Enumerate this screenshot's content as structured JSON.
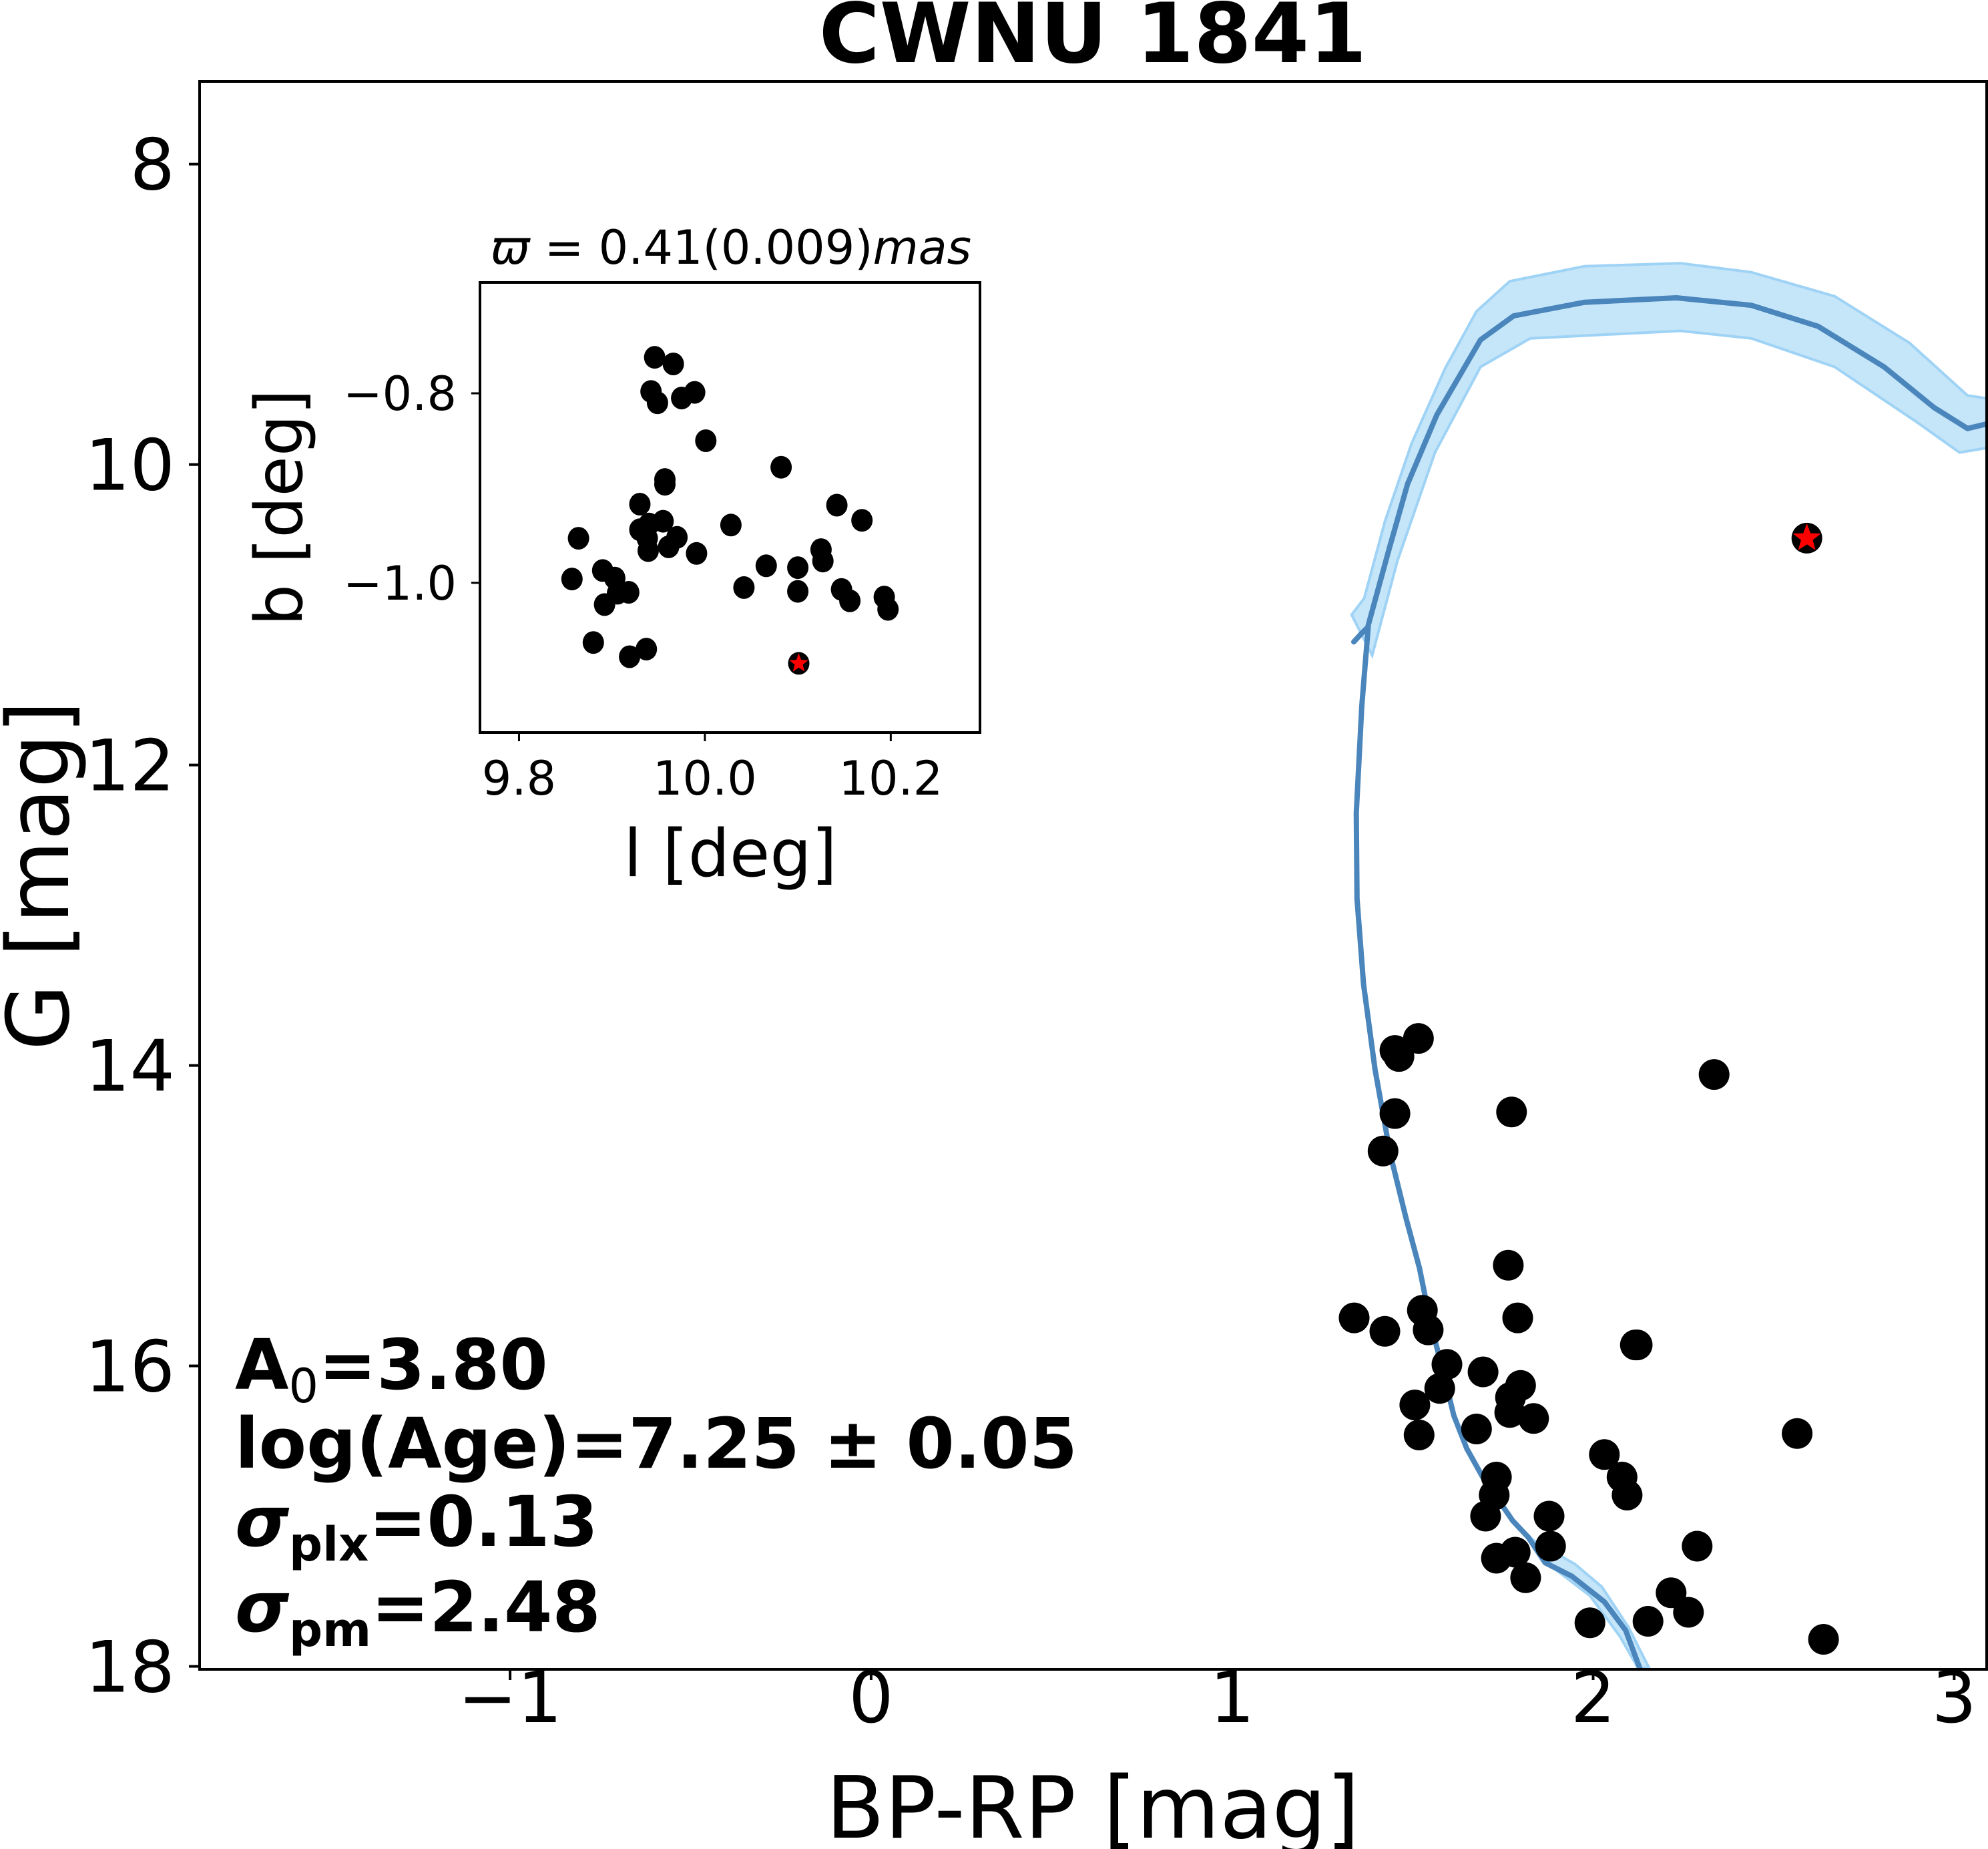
{
  "chart_data": [
    {
      "type": "scatter",
      "name": "color-magnitude-diagram",
      "title": "CWNU 1841",
      "xlabel": "BP-RP [mag]",
      "ylabel": "G [mag]",
      "xlim": [
        -1.86,
        3.09
      ],
      "ylim": [
        18.02,
        7.45
      ],
      "y_inverted": true,
      "grid": false,
      "xticks": [
        -1,
        0,
        1,
        2,
        3
      ],
      "xtick_labels": [
        "−1",
        "0",
        "1",
        "2",
        "3"
      ],
      "yticks": [
        8,
        10,
        12,
        14,
        16,
        18
      ],
      "ytick_labels": [
        "8",
        "10",
        "12",
        "14",
        "16",
        "18"
      ],
      "members": {
        "color": "#000000",
        "x": [
          1.516,
          1.451,
          1.462,
          1.451,
          1.418,
          1.774,
          2.335,
          1.765,
          1.338,
          1.423,
          1.527,
          1.543,
          1.791,
          2.117,
          2.122,
          1.595,
          1.695,
          1.575,
          1.799,
          1.771,
          1.769,
          1.835,
          1.506,
          1.518,
          1.677,
          2.031,
          2.08,
          2.094,
          1.732,
          1.726,
          1.702,
          1.878,
          1.882,
          1.784,
          1.732,
          1.813,
          2.288,
          2.216,
          2.264,
          1.991,
          2.152,
          2.638,
          2.565
        ],
        "y": [
          13.82,
          13.9,
          13.94,
          14.32,
          14.57,
          14.31,
          14.06,
          15.33,
          15.68,
          15.77,
          15.63,
          15.76,
          15.68,
          15.86,
          15.86,
          15.99,
          16.04,
          16.15,
          16.13,
          16.21,
          16.31,
          16.35,
          16.26,
          16.46,
          16.42,
          16.59,
          16.74,
          16.86,
          16.74,
          16.86,
          17.0,
          17.0,
          17.2,
          17.24,
          17.28,
          17.41,
          17.2,
          17.51,
          17.64,
          17.71,
          17.7,
          17.82,
          16.45
        ]
      },
      "highlight_star": {
        "x": 2.592,
        "y": 10.49,
        "color": "#ff0000",
        "edge": "#000000"
      },
      "isochrone": {
        "color": "#4a86bc",
        "x": [
          1.337,
          1.36,
          1.377,
          1.359,
          1.344,
          1.346,
          1.364,
          1.396,
          1.438,
          1.482,
          1.519,
          1.55,
          1.575,
          1.614,
          1.65,
          1.694,
          1.74,
          1.777,
          1.82,
          1.867,
          1.941,
          2.031,
          2.09,
          2.135
        ],
        "y": [
          11.18,
          11.12,
          11.08,
          11.61,
          12.32,
          12.89,
          13.46,
          14.03,
          14.59,
          15.02,
          15.35,
          15.72,
          15.95,
          16.33,
          16.55,
          16.74,
          16.9,
          17.03,
          17.14,
          17.31,
          17.4,
          17.57,
          17.76,
          18.05
        ]
      },
      "isochrone_upper": {
        "color": "#4a86bc",
        "x": [
          1.377,
          1.435,
          1.486,
          1.567,
          1.688,
          1.78,
          1.976,
          2.231,
          2.438,
          2.623,
          2.806,
          2.944,
          3.037,
          3.09
        ],
        "y": [
          11.07,
          10.56,
          10.13,
          9.67,
          9.17,
          9.01,
          8.92,
          8.89,
          8.94,
          9.08,
          9.35,
          9.62,
          9.76,
          9.73
        ]
      },
      "band": {
        "color": "#9fd3f5",
        "upper_x": [
          1.331,
          1.366,
          1.423,
          1.497,
          1.59,
          1.677,
          1.769,
          1.976,
          2.242,
          2.438,
          2.669,
          2.876,
          3.037,
          3.09
        ],
        "upper_y": [
          11.0,
          10.89,
          10.38,
          9.86,
          9.36,
          8.98,
          8.78,
          8.68,
          8.66,
          8.72,
          8.88,
          9.19,
          9.54,
          9.56
        ],
        "lower_x": [
          1.388,
          1.458,
          1.562,
          1.688,
          1.826,
          2.242,
          2.438,
          2.669,
          2.898,
          3.015,
          3.09
        ],
        "lower_y": [
          11.27,
          10.64,
          9.92,
          9.35,
          9.16,
          9.11,
          9.16,
          9.35,
          9.72,
          9.92,
          9.89
        ],
        "lower_band_left_x": [
          1.817,
          1.893,
          1.991,
          2.074,
          2.124
        ],
        "lower_band_left_y": [
          17.12,
          17.35,
          17.53,
          17.8,
          18.01
        ],
        "lower_band_right_x": [
          1.834,
          1.95,
          2.024,
          2.098,
          2.155
        ],
        "lower_band_right_y": [
          17.16,
          17.32,
          17.47,
          17.74,
          18.01
        ]
      },
      "annotations": [
        {
          "main": "A",
          "sub": "0",
          "rest": "=3.80"
        },
        {
          "main": "log(Age)=7.25 ± 0.05",
          "sub": "",
          "rest": ""
        },
        {
          "main": "σ",
          "sub": "plx",
          "rest": "=0.13"
        },
        {
          "main": "σ",
          "sub": "pm",
          "rest": "=2.48"
        }
      ]
    },
    {
      "type": "scatter",
      "name": "sky-position-inset",
      "title_symbol": "ϖ",
      "title_eq": " = 0.41(0.009)",
      "title_unit": "mas",
      "xlabel": "l [deg]",
      "ylabel": "b [deg]",
      "xlim": [
        9.758,
        10.296
      ],
      "ylim": [
        -1.158,
        -0.683
      ],
      "grid": false,
      "xticks": [
        9.8,
        10.0,
        10.2
      ],
      "xtick_labels": [
        "9.8",
        "10.0",
        "10.2"
      ],
      "yticks": [
        -0.8,
        -1.0
      ],
      "ytick_labels": [
        "−0.8",
        "−1.0"
      ],
      "members": {
        "color": "#000000",
        "x": [
          9.946,
          9.966,
          9.942,
          9.949,
          9.975,
          9.989,
          10.001,
          10.082,
          9.957,
          9.957,
          9.93,
          10.142,
          10.169,
          10.028,
          9.864,
          9.93,
          9.94,
          9.955,
          9.938,
          9.97,
          9.961,
          9.939,
          9.991,
          10.125,
          10.127,
          10.066,
          10.1,
          9.857,
          9.89,
          9.903,
          9.906,
          9.918,
          9.892,
          10.042,
          10.1,
          10.147,
          10.156,
          10.193,
          10.197,
          9.88,
          9.919,
          9.937
        ],
        "y": [
          -0.762,
          -0.769,
          -0.798,
          -0.81,
          -0.805,
          -0.799,
          -0.85,
          -0.878,
          -0.891,
          -0.896,
          -0.917,
          -0.918,
          -0.934,
          -0.939,
          -0.953,
          -0.944,
          -0.938,
          -0.935,
          -0.953,
          -0.952,
          -0.962,
          -0.966,
          -0.969,
          -0.965,
          -0.977,
          -0.982,
          -0.984,
          -0.996,
          -0.987,
          -0.995,
          -1.011,
          -1.01,
          -1.023,
          -1.005,
          -1.009,
          -1.007,
          -1.019,
          -1.015,
          -1.028,
          -1.063,
          -1.078,
          -1.07
        ]
      },
      "highlight_star": {
        "x": 10.101,
        "y": -1.085,
        "color": "#ff0000",
        "edge": "#000000"
      }
    }
  ]
}
